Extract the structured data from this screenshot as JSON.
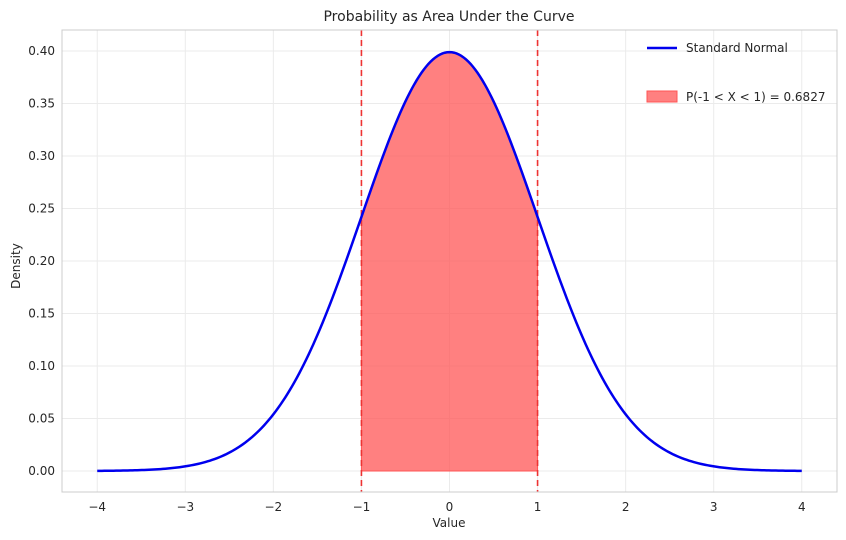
{
  "chart_data": {
    "type": "area",
    "title": "Probability as Area Under the Curve",
    "xlabel": "Value",
    "ylabel": "Density",
    "xlim": [
      -4.4,
      4.4
    ],
    "ylim": [
      -0.02,
      0.42
    ],
    "x_ticks": [
      -4,
      -3,
      -2,
      -1,
      0,
      1,
      2,
      3,
      4
    ],
    "x_tick_labels": [
      "−4",
      "−3",
      "−2",
      "−1",
      "0",
      "1",
      "2",
      "3",
      "4"
    ],
    "y_ticks": [
      0.0,
      0.05,
      0.1,
      0.15,
      0.2,
      0.25,
      0.3,
      0.35,
      0.4
    ],
    "y_tick_labels": [
      "0.00",
      "0.05",
      "0.10",
      "0.15",
      "0.20",
      "0.25",
      "0.30",
      "0.35",
      "0.40"
    ],
    "grid": true,
    "legend_position": "top-right",
    "series": [
      {
        "name": "Standard Normal",
        "kind": "line",
        "color": "#0000ee",
        "x": [
          -4,
          -3.5,
          -3,
          -2.5,
          -2,
          -1.75,
          -1.5,
          -1.25,
          -1,
          -0.75,
          -0.5,
          -0.25,
          0,
          0.25,
          0.5,
          0.75,
          1,
          1.25,
          1.5,
          1.75,
          2,
          2.5,
          3,
          3.5,
          4
        ],
        "y": [
          0.0001,
          0.0009,
          0.0044,
          0.0175,
          0.054,
          0.0863,
          0.1295,
          0.1826,
          0.242,
          0.3011,
          0.3521,
          0.3867,
          0.3989,
          0.3867,
          0.3521,
          0.3011,
          0.242,
          0.1826,
          0.1295,
          0.0863,
          0.054,
          0.0175,
          0.0044,
          0.0009,
          0.0001
        ]
      },
      {
        "name": "P(-1 < X < 1) = 0.6827",
        "kind": "shaded-area",
        "color": "#ff5555",
        "x_from": -1,
        "x_to": 1
      }
    ],
    "vlines": [
      {
        "x": -1,
        "color": "#ee3333",
        "style": "dashed"
      },
      {
        "x": 1,
        "color": "#ee3333",
        "style": "dashed"
      }
    ]
  }
}
